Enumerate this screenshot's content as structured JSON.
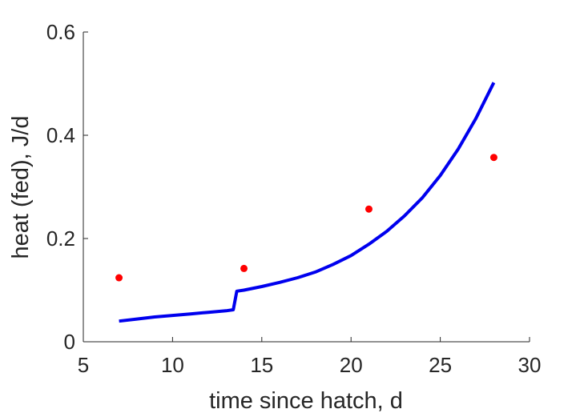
{
  "chart_data": {
    "type": "line",
    "xlabel": "time since hatch, d",
    "ylabel": "heat (fed), J/d",
    "xlim": [
      5,
      30
    ],
    "ylim": [
      0,
      0.6
    ],
    "xticks": [
      5,
      10,
      15,
      20,
      25,
      30
    ],
    "yticks": [
      0,
      0.2,
      0.4,
      0.6
    ],
    "x_tick_labels": [
      "5",
      "10",
      "15",
      "20",
      "25",
      "30"
    ],
    "y_tick_labels": [
      "0",
      "0.2",
      "0.4",
      "0.6"
    ],
    "grid": false,
    "series": [
      {
        "kind": "line",
        "color": "#0000ee",
        "x": [
          7.0,
          8.0,
          9.0,
          10.0,
          11.0,
          12.0,
          13.0,
          13.4,
          13.6,
          14.0,
          15.0,
          16.0,
          17.0,
          18.0,
          19.0,
          20.0,
          21.0,
          22.0,
          23.0,
          24.0,
          25.0,
          26.0,
          27.0,
          28.0
        ],
        "y": [
          0.04,
          0.044,
          0.048,
          0.051,
          0.054,
          0.057,
          0.06,
          0.062,
          0.098,
          0.1,
          0.107,
          0.115,
          0.124,
          0.135,
          0.15,
          0.167,
          0.189,
          0.214,
          0.244,
          0.279,
          0.322,
          0.373,
          0.433,
          0.502
        ]
      },
      {
        "kind": "scatter",
        "color": "#ff0000",
        "x": [
          7,
          14,
          21,
          28
        ],
        "y": [
          0.124,
          0.142,
          0.257,
          0.357
        ]
      }
    ]
  }
}
